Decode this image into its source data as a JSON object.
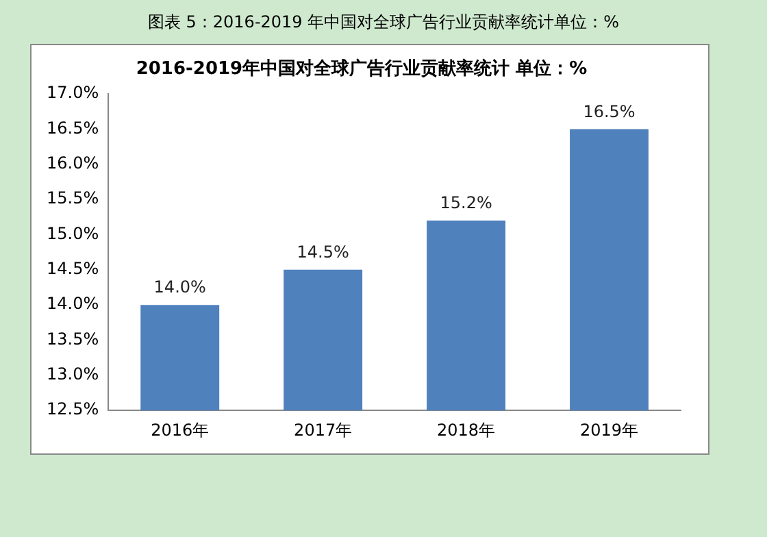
{
  "chart_data": {
    "type": "bar",
    "title": "图表 5：2016-2019 年中国对全球广告行业贡献率统计单位：%",
    "subtitle": "2016-2019年中国对全球广告行业贡献率统计 单位：%",
    "categories": [
      "2016年",
      "2017年",
      "2018年",
      "2019年"
    ],
    "values": [
      14.0,
      14.5,
      15.2,
      16.5
    ],
    "value_labels": [
      "14.0%",
      "14.5%",
      "15.2%",
      "16.5%"
    ],
    "color": "#4f81bd",
    "ylim": [
      12.5,
      17
    ],
    "yticks": [
      {
        "value": 12.5,
        "label": "12.5%"
      },
      {
        "value": 13,
        "label": "13.0%"
      },
      {
        "value": 13.5,
        "label": "13.5%"
      },
      {
        "value": 14,
        "label": "14.0%"
      },
      {
        "value": 14.5,
        "label": "14.5%"
      },
      {
        "value": 15,
        "label": "15.0%"
      },
      {
        "value": 15.5,
        "label": "15.5%"
      },
      {
        "value": 16,
        "label": "16.0%"
      },
      {
        "value": 16.5,
        "label": "16.5%"
      },
      {
        "value": 17,
        "label": "17.0%"
      }
    ]
  }
}
